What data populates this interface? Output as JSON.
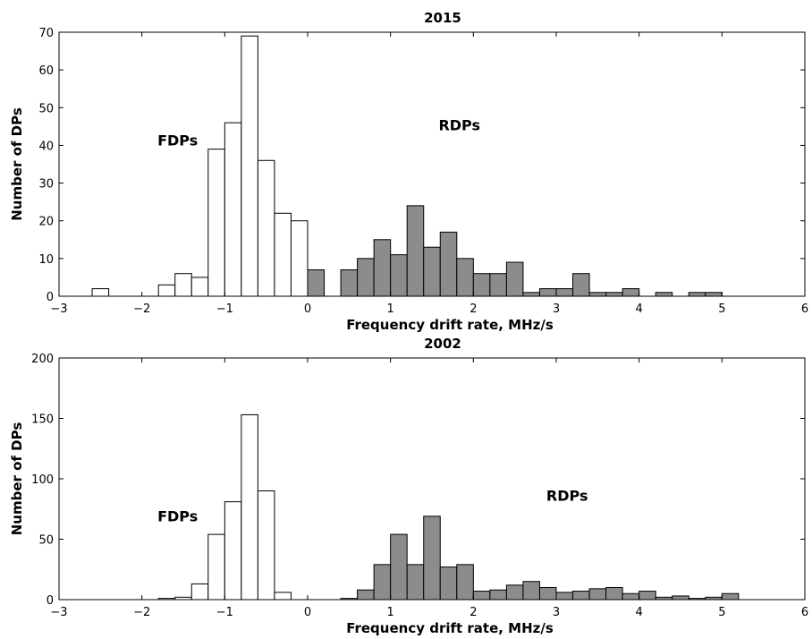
{
  "chart_data": [
    {
      "type": "bar",
      "title": "2015",
      "xlabel": "Frequency drift rate, MHz/s",
      "ylabel": "Number of DPs",
      "xlim": [
        -3,
        6
      ],
      "ylim": [
        0,
        70
      ],
      "xticks": [
        -3,
        -2,
        -1,
        0,
        1,
        2,
        3,
        4,
        5,
        6
      ],
      "yticks": [
        0,
        10,
        20,
        30,
        40,
        50,
        60,
        70
      ],
      "bin_width": 0.2,
      "annotations": [
        {
          "text": "FDPs",
          "x": -2.0,
          "y": 40
        },
        {
          "text": "RDPs",
          "x": 1.4,
          "y": 44
        }
      ],
      "series": [
        {
          "fill": "#ffffff",
          "bins": [
            {
              "x": -2.6,
              "value": 2
            },
            {
              "x": -1.8,
              "value": 3
            },
            {
              "x": -1.6,
              "value": 6
            },
            {
              "x": -1.4,
              "value": 5
            },
            {
              "x": -1.2,
              "value": 39
            },
            {
              "x": -1.0,
              "value": 46
            },
            {
              "x": -0.8,
              "value": 69
            },
            {
              "x": -0.6,
              "value": 36
            },
            {
              "x": -0.4,
              "value": 22
            },
            {
              "x": -0.2,
              "value": 20
            }
          ]
        },
        {
          "fill": "#8c8c8c",
          "bins": [
            {
              "x": 0.0,
              "value": 7
            },
            {
              "x": 0.4,
              "value": 7
            },
            {
              "x": 0.6,
              "value": 10
            },
            {
              "x": 0.8,
              "value": 15
            },
            {
              "x": 1.0,
              "value": 11
            },
            {
              "x": 1.2,
              "value": 24
            },
            {
              "x": 1.4,
              "value": 13
            },
            {
              "x": 1.6,
              "value": 17
            },
            {
              "x": 1.8,
              "value": 10
            },
            {
              "x": 2.0,
              "value": 6
            },
            {
              "x": 2.2,
              "value": 6
            },
            {
              "x": 2.4,
              "value": 9
            },
            {
              "x": 2.6,
              "value": 1
            },
            {
              "x": 2.8,
              "value": 2
            },
            {
              "x": 3.0,
              "value": 2
            },
            {
              "x": 3.2,
              "value": 6
            },
            {
              "x": 3.4,
              "value": 1
            },
            {
              "x": 3.6,
              "value": 1
            },
            {
              "x": 3.8,
              "value": 2
            },
            {
              "x": 4.2,
              "value": 1
            },
            {
              "x": 4.6,
              "value": 1
            },
            {
              "x": 4.8,
              "value": 1
            }
          ]
        }
      ]
    },
    {
      "type": "bar",
      "title": "2002",
      "xlabel": "Frequency drift rate, MHz/s",
      "ylabel": "Number of DPs",
      "xlim": [
        -3,
        6
      ],
      "ylim": [
        0,
        200
      ],
      "xticks": [
        -3,
        -2,
        -1,
        0,
        1,
        2,
        3,
        4,
        5,
        6
      ],
      "yticks": [
        0,
        50,
        100,
        150,
        200
      ],
      "bin_width": 0.2,
      "annotations": [
        {
          "text": "FDPs",
          "x": -2.0,
          "y": 65
        },
        {
          "text": "RDPs",
          "x": 2.7,
          "y": 82
        }
      ],
      "series": [
        {
          "fill": "#ffffff",
          "bins": [
            {
              "x": -1.8,
              "value": 1
            },
            {
              "x": -1.6,
              "value": 2
            },
            {
              "x": -1.4,
              "value": 13
            },
            {
              "x": -1.2,
              "value": 54
            },
            {
              "x": -1.0,
              "value": 81
            },
            {
              "x": -0.8,
              "value": 153
            },
            {
              "x": -0.6,
              "value": 90
            },
            {
              "x": -0.4,
              "value": 6
            }
          ]
        },
        {
          "fill": "#8c8c8c",
          "bins": [
            {
              "x": 0.4,
              "value": 1
            },
            {
              "x": 0.6,
              "value": 8
            },
            {
              "x": 0.8,
              "value": 29
            },
            {
              "x": 1.0,
              "value": 54
            },
            {
              "x": 1.2,
              "value": 29
            },
            {
              "x": 1.4,
              "value": 69
            },
            {
              "x": 1.6,
              "value": 27
            },
            {
              "x": 1.8,
              "value": 29
            },
            {
              "x": 2.0,
              "value": 7
            },
            {
              "x": 2.2,
              "value": 8
            },
            {
              "x": 2.4,
              "value": 12
            },
            {
              "x": 2.6,
              "value": 15
            },
            {
              "x": 2.8,
              "value": 10
            },
            {
              "x": 3.0,
              "value": 6
            },
            {
              "x": 3.2,
              "value": 7
            },
            {
              "x": 3.4,
              "value": 9
            },
            {
              "x": 3.6,
              "value": 10
            },
            {
              "x": 3.8,
              "value": 5
            },
            {
              "x": 4.0,
              "value": 7
            },
            {
              "x": 4.2,
              "value": 2
            },
            {
              "x": 4.4,
              "value": 3
            },
            {
              "x": 4.6,
              "value": 1
            },
            {
              "x": 4.8,
              "value": 2
            },
            {
              "x": 5.0,
              "value": 5
            }
          ]
        }
      ]
    }
  ]
}
